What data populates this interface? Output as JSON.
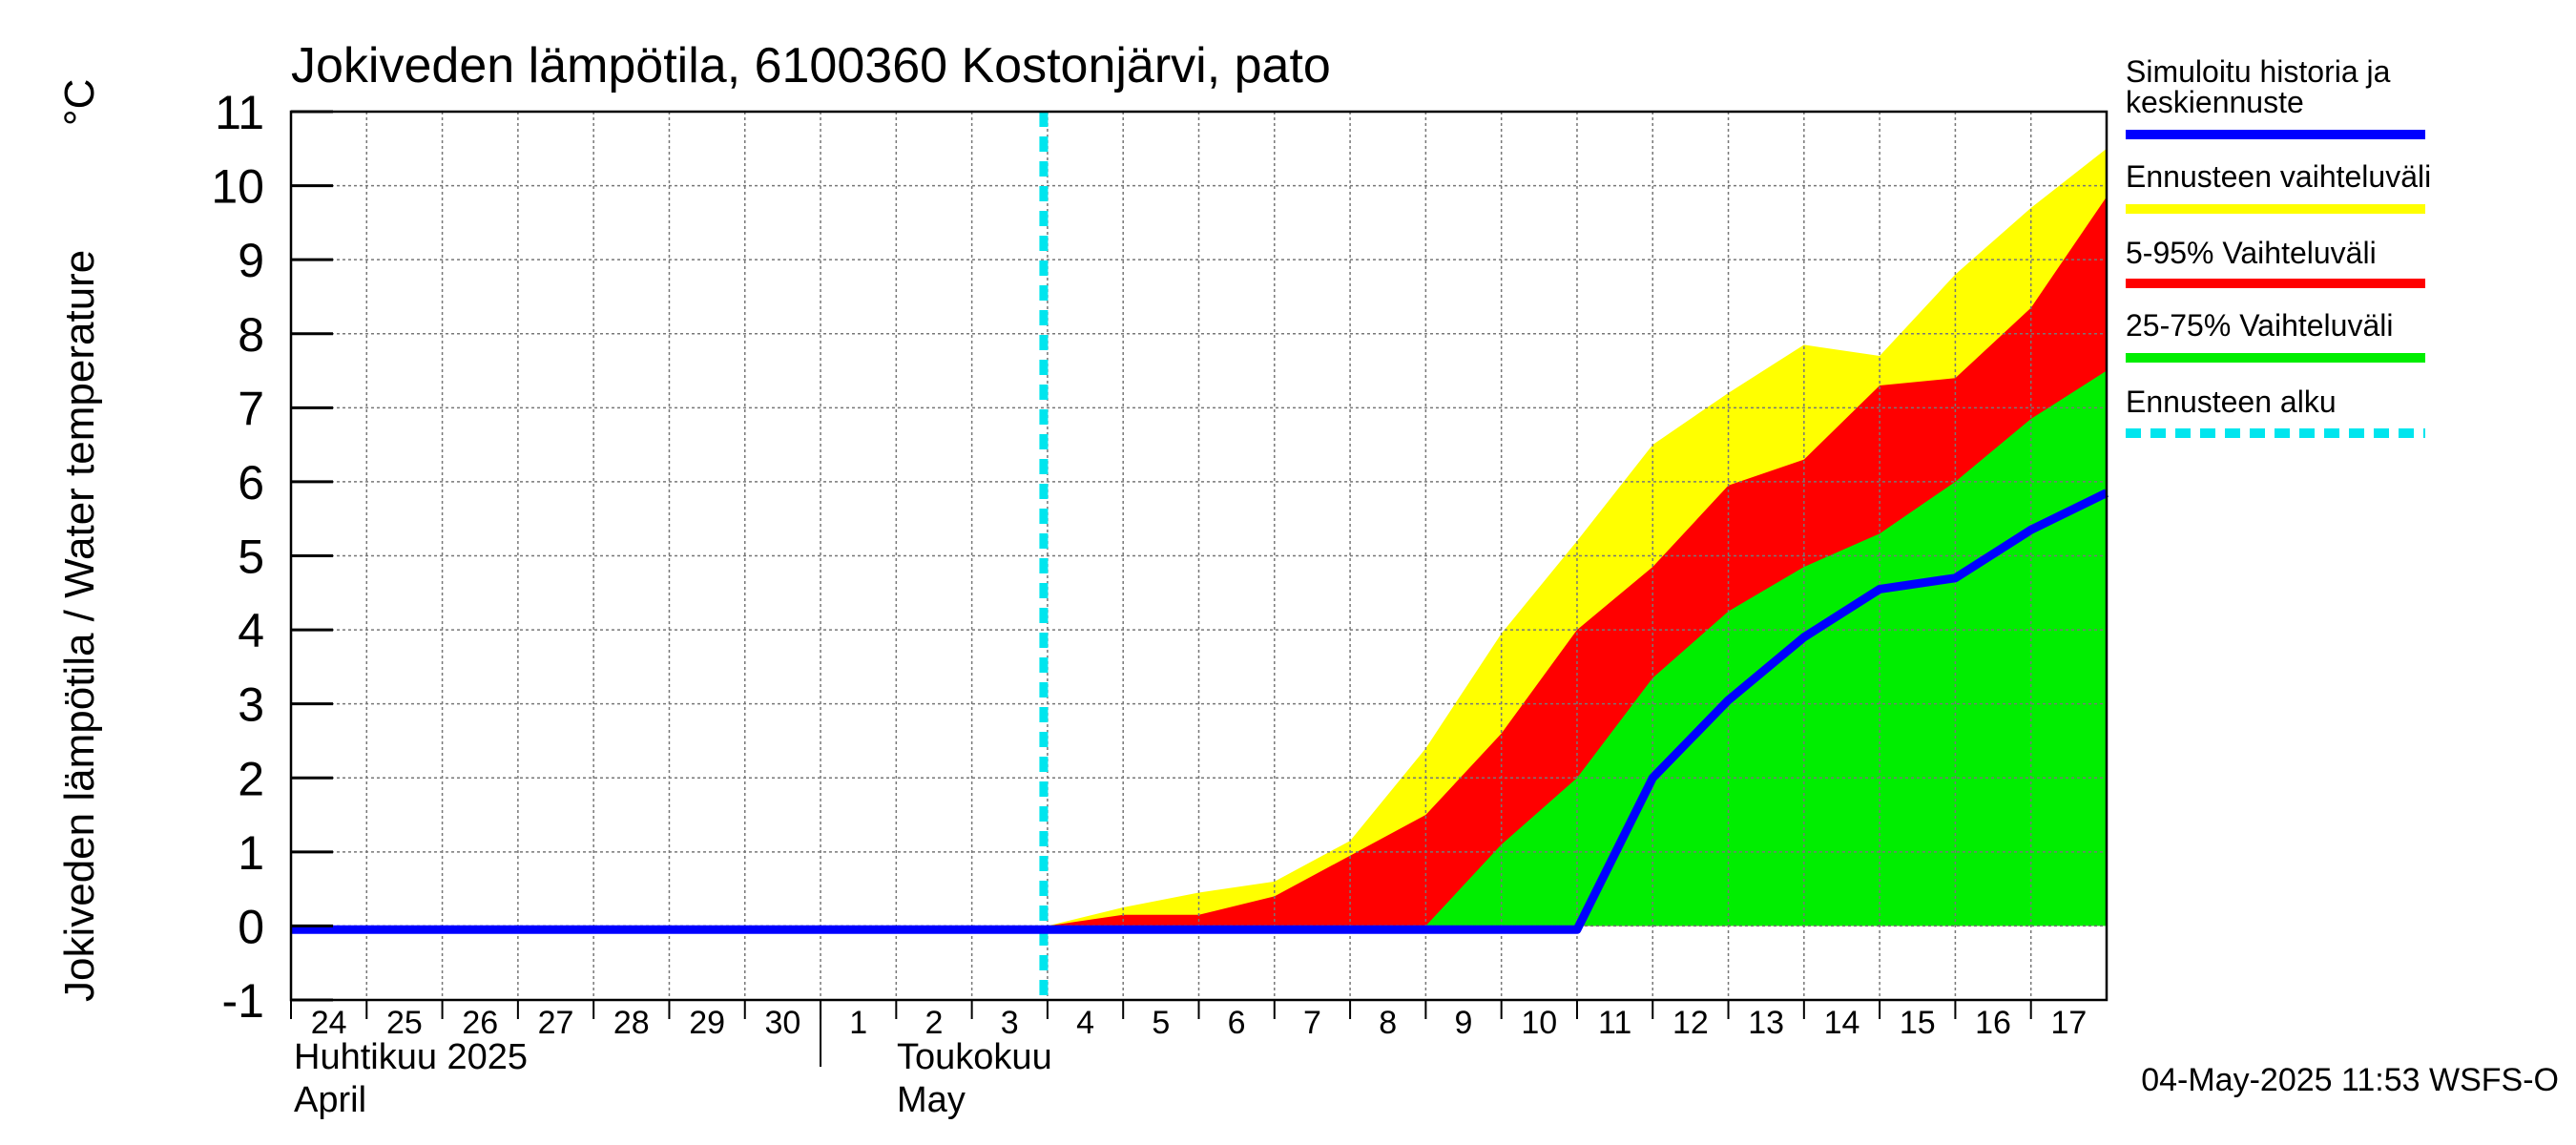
{
  "chart_data": {
    "type": "area",
    "title": "Jokiveden lämpötila, 6100360 Kostonjärvi, pato",
    "ylabel": "Jokiveden lämpötila / Water temperature",
    "yunit": "°C",
    "ylim": [
      -1,
      11
    ],
    "yticks": [
      -1,
      0,
      1,
      2,
      3,
      4,
      5,
      6,
      7,
      8,
      9,
      10,
      11
    ],
    "xlim": [
      "2025-04-24",
      "2025-05-18"
    ],
    "x_tick_labels": [
      "24",
      "25",
      "26",
      "27",
      "28",
      "29",
      "30",
      "1",
      "2",
      "3",
      "4",
      "5",
      "6",
      "7",
      "8",
      "9",
      "10",
      "11",
      "12",
      "13",
      "14",
      "15",
      "16",
      "17"
    ],
    "month_labels": [
      {
        "fi": "Huhtikuu  2025",
        "en": "April"
      },
      {
        "fi": "Toukokuu",
        "en": "May"
      }
    ],
    "grid": true,
    "legend_position": "right",
    "forecast_start": "2025-05-04",
    "x": [
      "2025-05-04",
      "2025-05-05",
      "2025-05-06",
      "2025-05-07",
      "2025-05-08",
      "2025-05-09",
      "2025-05-10",
      "2025-05-11",
      "2025-05-12",
      "2025-05-13",
      "2025-05-14",
      "2025-05-15",
      "2025-05-16",
      "2025-05-17",
      "2025-05-18"
    ],
    "bands": [
      {
        "name": "Ennusteen vaihteluväli",
        "color": "#ffff00",
        "lower": [
          0,
          0,
          0,
          0,
          0,
          0,
          0,
          0,
          0,
          0,
          0,
          0,
          0,
          0,
          1.2
        ],
        "upper": [
          0,
          0.25,
          0.45,
          0.6,
          1.15,
          2.4,
          3.95,
          5.2,
          6.5,
          7.2,
          7.85,
          7.7,
          8.8,
          9.7,
          10.5
        ]
      },
      {
        "name": "5-95% Vaihteluväli",
        "color": "#ff0000",
        "lower": [
          0,
          0,
          0,
          0,
          0,
          0,
          0,
          0,
          0,
          0,
          1.7,
          2.5,
          3.85,
          4.0,
          4.2
        ],
        "upper": [
          0,
          0.15,
          0.15,
          0.4,
          0.95,
          1.5,
          2.6,
          4.0,
          4.85,
          5.95,
          6.3,
          7.3,
          7.4,
          8.35,
          9.85
        ]
      },
      {
        "name": "25-75% Vaihteluväli",
        "color": "#00ee00",
        "lower": [
          0,
          0,
          0,
          0,
          0,
          0,
          0,
          0,
          0,
          0,
          0,
          0,
          0,
          0,
          0
        ],
        "upper": [
          0,
          0,
          0,
          0,
          0,
          0,
          1.1,
          2.0,
          3.35,
          4.25,
          4.85,
          5.3,
          6.0,
          6.85,
          7.5
        ]
      }
    ],
    "series": [
      {
        "name": "Simuloitu historia ja keskiennuste",
        "color": "#0000ff",
        "x": [
          "2025-04-24",
          "2025-05-11",
          "2025-05-12",
          "2025-05-13",
          "2025-05-14",
          "2025-05-15",
          "2025-05-16",
          "2025-05-17",
          "2025-05-18"
        ],
        "values": [
          -0.05,
          -0.05,
          2.0,
          3.05,
          3.9,
          4.55,
          4.7,
          5.35,
          5.85
        ]
      }
    ],
    "legend": [
      {
        "label": "Simuloitu historia ja keskiennuste",
        "color": "#0000ff",
        "style": "solid"
      },
      {
        "label": "Ennusteen vaihteluväli",
        "color": "#ffff00",
        "style": "solid"
      },
      {
        "label": "5-95% Vaihteluväli",
        "color": "#ff0000",
        "style": "solid"
      },
      {
        "label": "25-75% Vaihteluväli",
        "color": "#00ee00",
        "style": "solid"
      },
      {
        "label": "Ennusteen alku",
        "color": "#00e5ee",
        "style": "dashed"
      }
    ],
    "footer": "04-May-2025 11:53 WSFS-O"
  }
}
